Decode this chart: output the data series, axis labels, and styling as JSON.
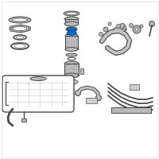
{
  "bg_color": "#ffffff",
  "border_color": "#dddddd",
  "dark_color": "#4a4a4a",
  "gray_fill": "#b8b8b8",
  "light_fill": "#d0d0d0",
  "mid_fill": "#c4c4c4",
  "highlight_color": "#1a72c4",
  "fig_width": 2.0,
  "fig_height": 2.0,
  "dpi": 100
}
